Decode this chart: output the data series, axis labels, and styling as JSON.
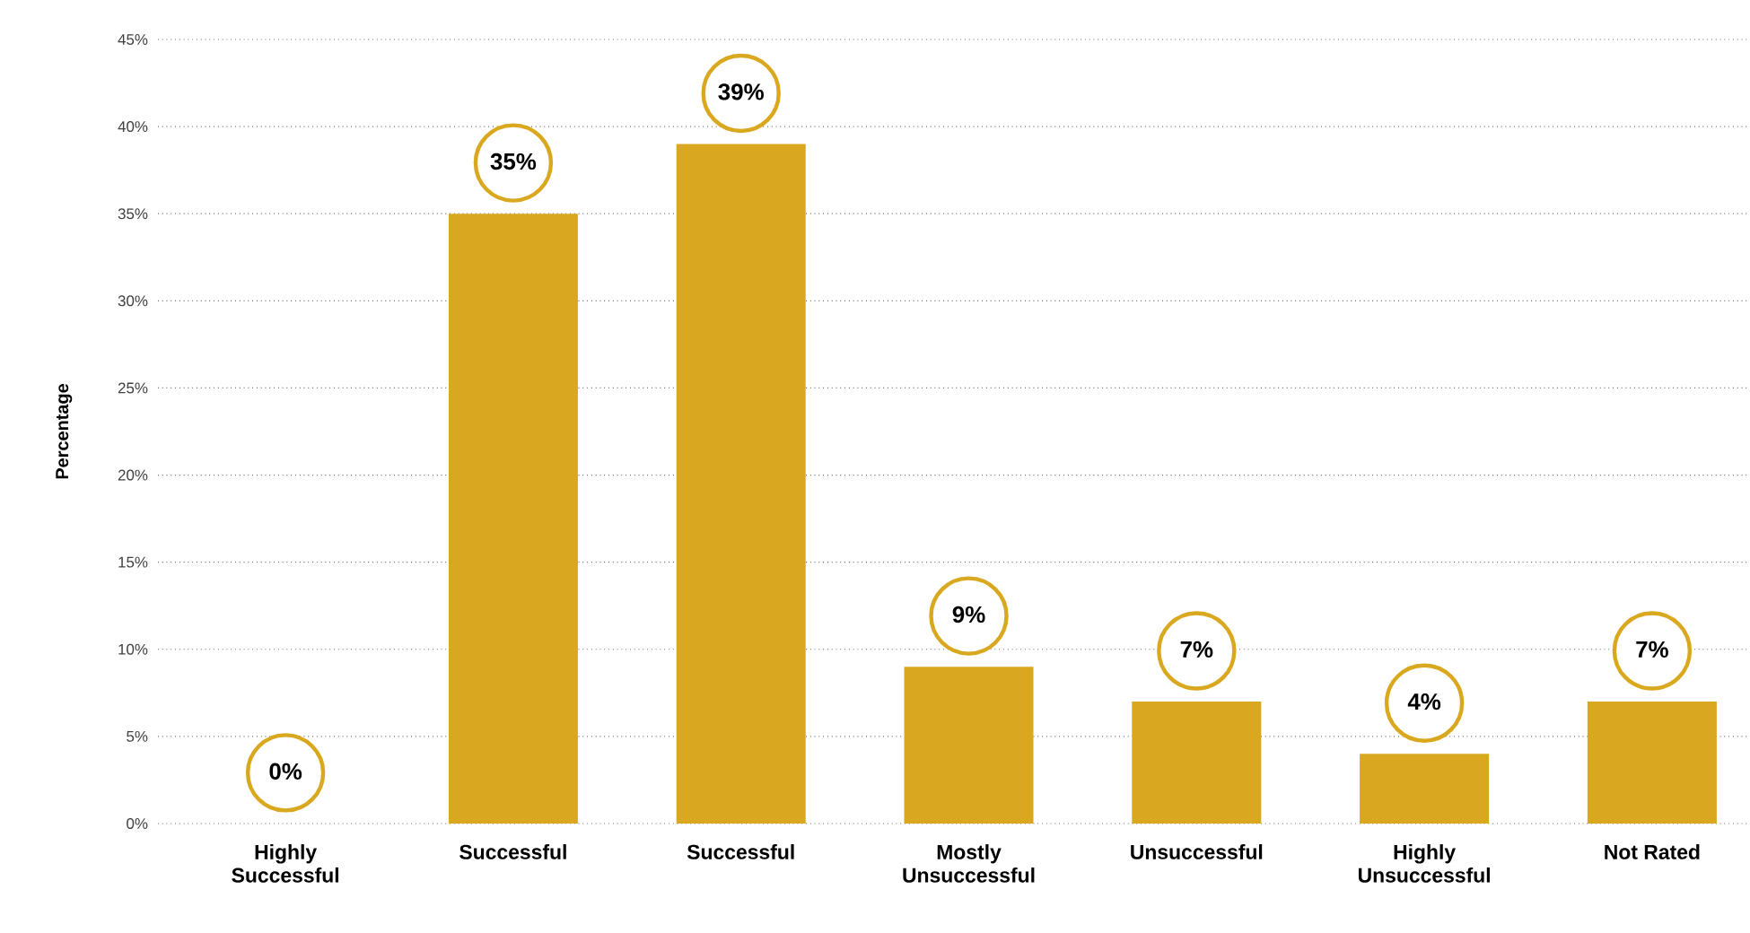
{
  "chart_data": {
    "type": "bar",
    "ylabel": "Percentage",
    "categories": [
      "Highly Successful",
      "Successful",
      "Successful",
      "Mostly Unsuccessful",
      "Unsuccessful",
      "Highly Unsuccessful",
      "Not Rated"
    ],
    "values": [
      0,
      35,
      39,
      9,
      7,
      4,
      7
    ],
    "value_labels": [
      "0%",
      "35%",
      "39%",
      "9%",
      "7%",
      "4%",
      "7%"
    ],
    "color": "#d9a81e",
    "ylim": [
      0,
      45
    ],
    "yticks": [
      {
        "value": 0,
        "label": "0%"
      },
      {
        "value": 5,
        "label": "5%"
      },
      {
        "value": 10,
        "label": "10%"
      },
      {
        "value": 15,
        "label": "15%"
      },
      {
        "value": 20,
        "label": "20%"
      },
      {
        "value": 25,
        "label": "25%"
      },
      {
        "value": 30,
        "label": "30%"
      },
      {
        "value": 35,
        "label": "35%"
      },
      {
        "value": 40,
        "label": "40%"
      },
      {
        "value": 45,
        "label": "45%"
      }
    ],
    "grid": "y"
  }
}
